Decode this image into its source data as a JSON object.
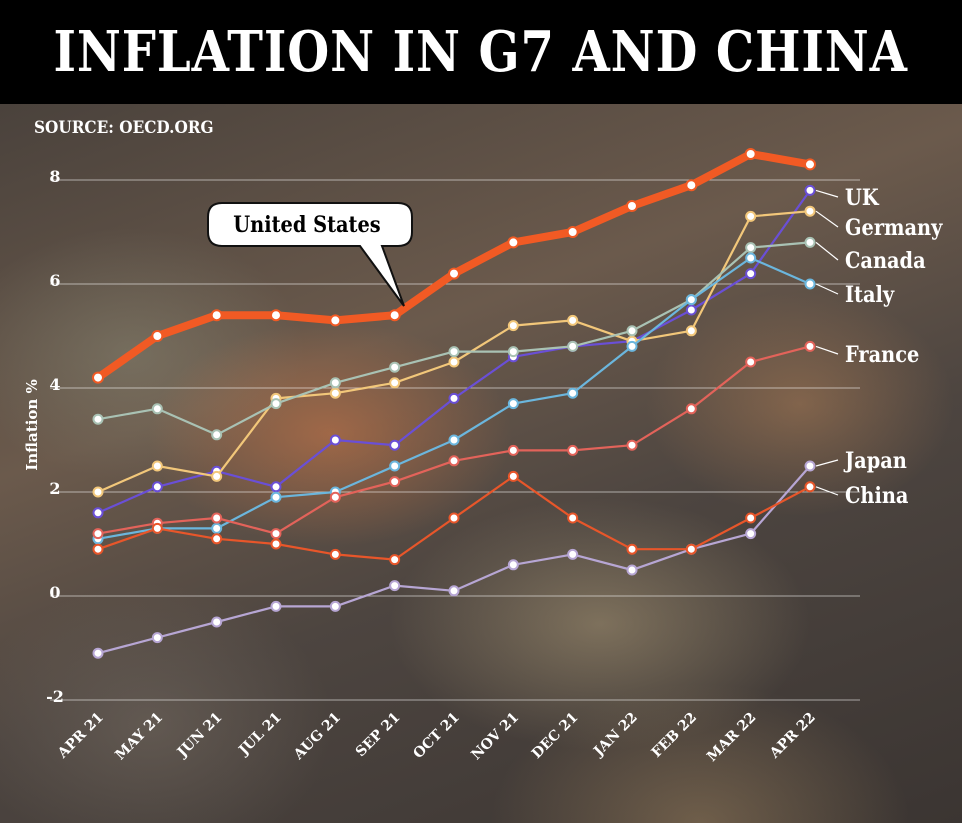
{
  "header": {
    "title": "INFLATION IN G7 AND CHINA"
  },
  "source": "SOURCE: OECD.ORG",
  "chart_data": {
    "type": "line",
    "title": "INFLATION IN G7 AND CHINA",
    "ylabel": "Inflation %",
    "xlabel": "",
    "ylim": [
      -2,
      8.5
    ],
    "yticks": [
      -2,
      0,
      2,
      4,
      6,
      8
    ],
    "ytick_labels": [
      "-2",
      "0",
      "2",
      "4",
      "6",
      "8"
    ],
    "grid": true,
    "categories": [
      "APR 21",
      "MAY 21",
      "JUN 21",
      "JUL 21",
      "AUG 21",
      "SEP 21",
      "OCT 21",
      "NOV 21",
      "DEC 21",
      "JAN 22",
      "FEB 22",
      "MAR 22",
      "APR 22"
    ],
    "callout": "United States",
    "series": [
      {
        "name": "United States",
        "color": "#f15a24",
        "values": [
          4.2,
          5.0,
          5.4,
          5.4,
          5.3,
          5.4,
          6.2,
          6.8,
          7.0,
          7.5,
          7.9,
          8.5,
          8.3
        ]
      },
      {
        "name": "UK",
        "color": "#6a4fd6",
        "values": [
          1.6,
          2.1,
          2.4,
          2.1,
          3.0,
          2.9,
          3.8,
          4.6,
          4.8,
          4.9,
          5.5,
          6.2,
          7.8
        ]
      },
      {
        "name": "Germany",
        "color": "#f2c77a",
        "values": [
          2.0,
          2.5,
          2.3,
          3.8,
          3.9,
          4.1,
          4.5,
          5.2,
          5.3,
          4.9,
          5.1,
          7.3,
          7.4
        ]
      },
      {
        "name": "Canada",
        "color": "#a9c2b4",
        "values": [
          3.4,
          3.6,
          3.1,
          3.7,
          4.1,
          4.4,
          4.7,
          4.7,
          4.8,
          5.1,
          5.7,
          6.7,
          6.8
        ]
      },
      {
        "name": "Italy",
        "color": "#6bb6dd",
        "values": [
          1.1,
          1.3,
          1.3,
          1.9,
          2.0,
          2.5,
          3.0,
          3.7,
          3.9,
          4.8,
          5.7,
          6.5,
          6.0
        ]
      },
      {
        "name": "France",
        "color": "#e3635a",
        "values": [
          1.2,
          1.4,
          1.5,
          1.2,
          1.9,
          2.2,
          2.6,
          2.8,
          2.8,
          2.9,
          3.6,
          4.5,
          4.8
        ]
      },
      {
        "name": "Japan",
        "color": "#b7a6d4",
        "values": [
          -1.1,
          -0.8,
          -0.5,
          -0.2,
          -0.2,
          0.2,
          0.1,
          0.6,
          0.8,
          0.5,
          0.9,
          1.2,
          2.5
        ]
      },
      {
        "name": "China",
        "color": "#e8562a",
        "values": [
          0.9,
          1.3,
          1.1,
          1.0,
          0.8,
          0.7,
          1.5,
          2.3,
          1.5,
          0.9,
          0.9,
          1.5,
          2.1
        ]
      }
    ]
  }
}
